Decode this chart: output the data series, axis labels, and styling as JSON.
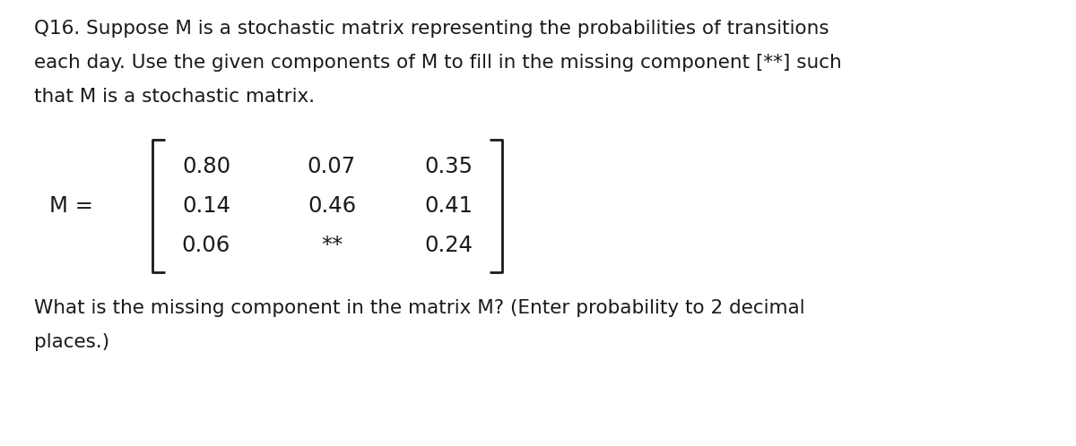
{
  "background_color": "#ffffff",
  "text_color": "#1a1a1a",
  "font_family": "DejaVu Sans",
  "question_text_line1": "Q16. Suppose M is a stochastic matrix representing the probabilities of transitions",
  "question_text_line2": "each day. Use the given components of M to fill in the missing component [**] such",
  "question_text_line3": "that M is a stochastic matrix.",
  "bottom_text_line1": "What is the missing component in the matrix M? (Enter probability to 2 decimal",
  "bottom_text_line2": "places.)",
  "matrix_label": "M =",
  "matrix_rows": [
    [
      "0.80",
      "0.07",
      "0.35"
    ],
    [
      "0.14",
      "0.46",
      "0.41"
    ],
    [
      "0.06",
      "**",
      "0.24"
    ]
  ],
  "font_size_text": 15.5,
  "font_size_matrix": 17.5,
  "font_size_label": 17.5,
  "fig_width": 12.0,
  "fig_height": 4.98,
  "dpi": 100
}
